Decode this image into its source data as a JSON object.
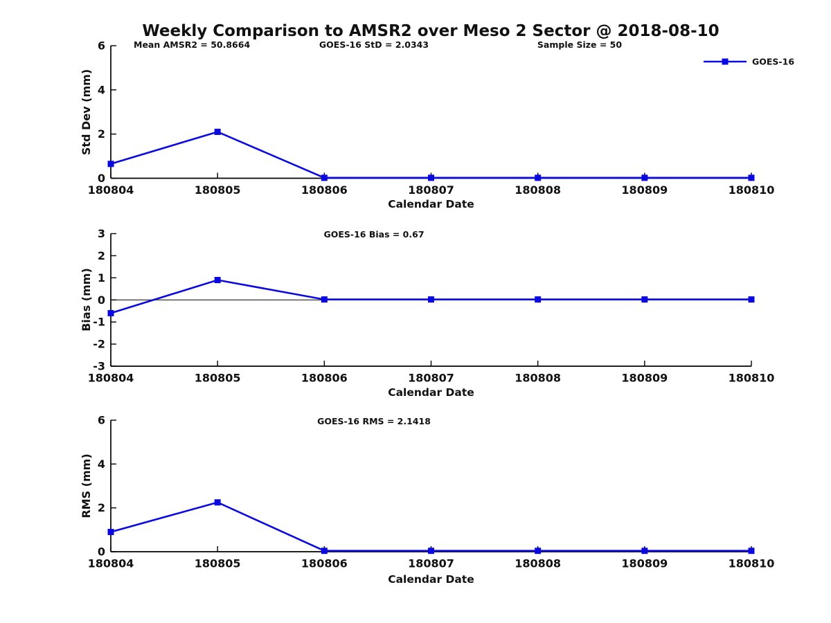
{
  "title": "Weekly Comparison to AMSR2 over Meso 2 Sector @ 2018-08-10",
  "annotations": {
    "mean_amsr2": "Mean AMSR2 = 50.8664",
    "sample_size": "Sample Size = 50"
  },
  "legend": {
    "label": "GOES-16"
  },
  "colors": {
    "series": "#0a0ae0",
    "axis": "#000000",
    "text": "#111111"
  },
  "chart_data": [
    {
      "type": "line",
      "name": "std-dev",
      "annotation": "GOES-16 StD = 2.0343",
      "ylabel": "Std Dev (mm)",
      "xlabel": "Calendar Date",
      "categories": [
        "180804",
        "180805",
        "180806",
        "180807",
        "180808",
        "180809",
        "180810"
      ],
      "series": [
        {
          "name": "GOES-16",
          "values": [
            0.65,
            2.1,
            0.02,
            0.02,
            0.02,
            0.02,
            0.02
          ]
        }
      ],
      "ylim": [
        0,
        6
      ],
      "yticks": [
        0,
        2,
        4,
        6
      ],
      "zero_line": false,
      "grid": false,
      "legend_position": "top-right-outside"
    },
    {
      "type": "line",
      "name": "bias",
      "annotation": "GOES-16 Bias  = 0.67",
      "ylabel": "Bias (mm)",
      "xlabel": "Calendar Date",
      "categories": [
        "180804",
        "180805",
        "180806",
        "180807",
        "180808",
        "180809",
        "180810"
      ],
      "series": [
        {
          "name": "GOES-16",
          "values": [
            -0.6,
            0.9,
            0.02,
            0.02,
            0.02,
            0.02,
            0.02
          ]
        }
      ],
      "ylim": [
        -3,
        3
      ],
      "yticks": [
        -3,
        -2,
        -1,
        0,
        1,
        2,
        3
      ],
      "zero_line": true,
      "grid": false
    },
    {
      "type": "line",
      "name": "rms",
      "annotation": "GOES-16 RMS = 2.1418",
      "ylabel": "RMS (mm)",
      "xlabel": "Calendar Date",
      "categories": [
        "180804",
        "180805",
        "180806",
        "180807",
        "180808",
        "180809",
        "180810"
      ],
      "series": [
        {
          "name": "GOES-16",
          "values": [
            0.9,
            2.25,
            0.04,
            0.04,
            0.04,
            0.04,
            0.04
          ]
        }
      ],
      "ylim": [
        0,
        6
      ],
      "yticks": [
        0,
        2,
        4,
        6
      ],
      "zero_line": false,
      "grid": false
    }
  ]
}
